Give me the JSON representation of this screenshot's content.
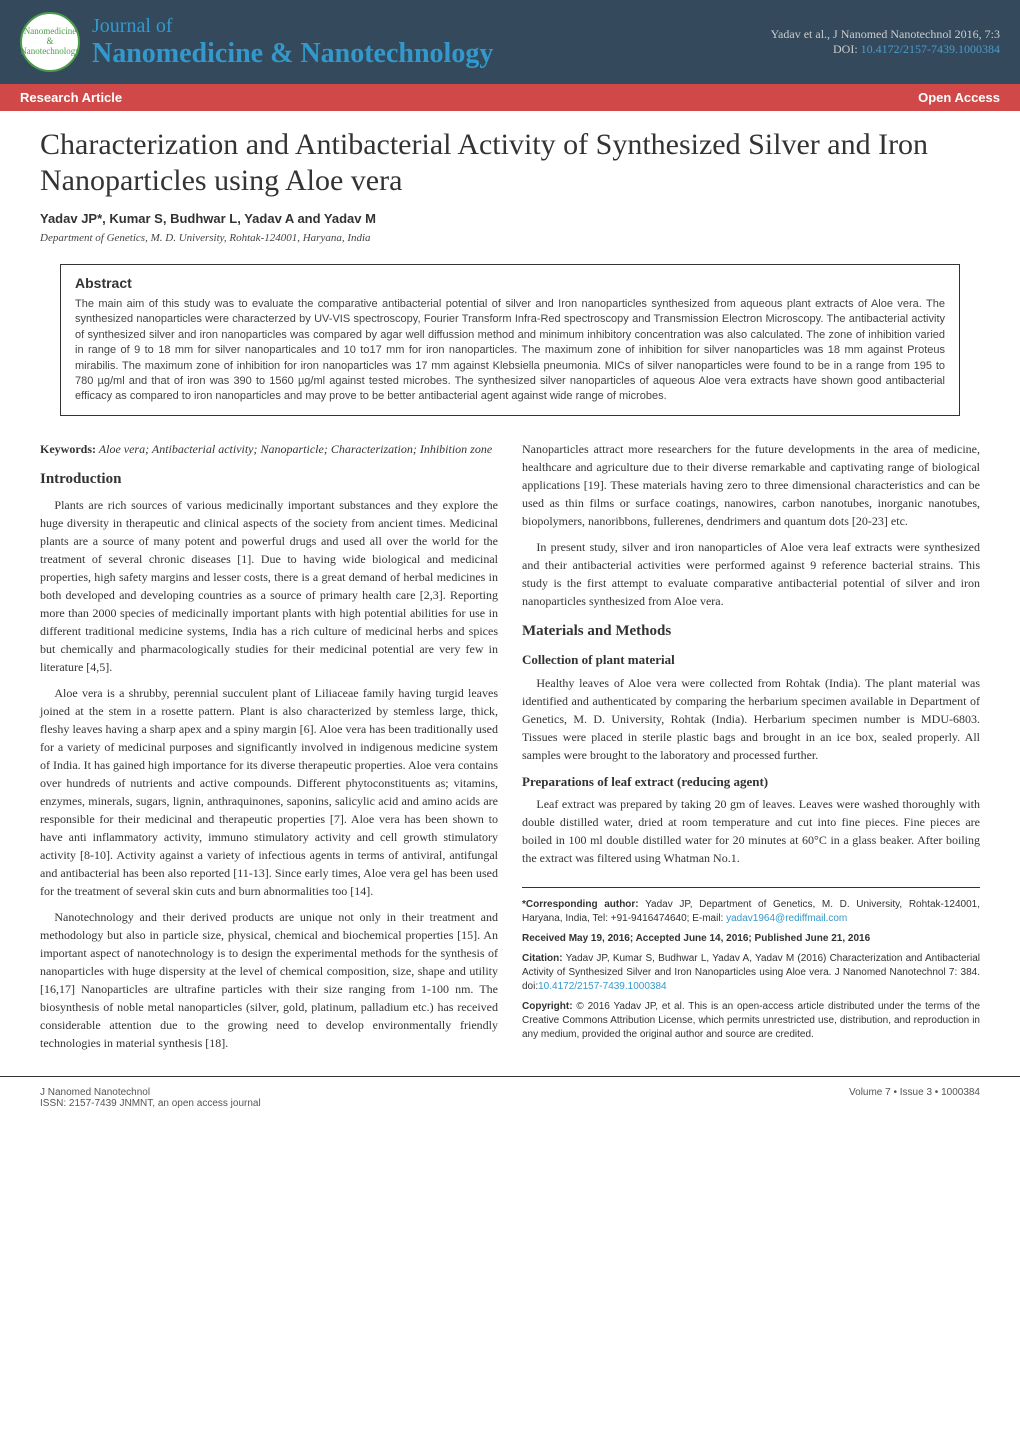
{
  "header": {
    "journal_of": "Journal of",
    "journal_title": "Nanomedicine & Nanotechnology",
    "logo_text": "Nanomedicine & Nanotechnology",
    "citation": "Yadav et al., J Nanomed Nanotechnol 2016, 7:3",
    "doi_label": "DOI: ",
    "doi": "10.4172/2157-7439.1000384",
    "research_article": "Research Article",
    "open_access": "Open Access"
  },
  "article": {
    "title": "Characterization and Antibacterial Activity of Synthesized Silver and Iron Nanoparticles using Aloe vera",
    "authors": "Yadav JP*, Kumar S, Budhwar L, Yadav A and Yadav M",
    "affiliation": "Department of Genetics, M. D. University, Rohtak-124001, Haryana, India"
  },
  "abstract": {
    "heading": "Abstract",
    "text": "The main aim of this study was to evaluate the comparative antibacterial potential of silver and Iron nanoparticles synthesized from aqueous plant extracts of Aloe vera. The synthesized nanoparticles were characterzed by UV-VIS spectroscopy, Fourier Transform Infra-Red spectroscopy and Transmission Electron Microscopy. The antibacterial activity of synthesized silver and iron nanoparticles was compared by agar well diffussion method and minimum inhibitory concentration was also calculated. The zone of inhibition varied in range of 9 to 18 mm for silver nanoparticales and 10 to17 mm for iron nanoparticles. The maximum zone of inhibition for silver nanoparticles was 18 mm against Proteus mirabilis. The maximum zone of inhibition for iron nanoparticles was 17 mm against Klebsiella pneumonia. MICs of silver nanoparticles were found to be in a range from 195 to 780 µg/ml and that of iron was 390 to 1560 µg/ml against tested microbes. The synthesized silver nanoparticles of aqueous Aloe vera extracts have shown good antibacterial efficacy as compared to iron nanoparticles and may prove to be better antibacterial agent against wide range of microbes."
  },
  "keywords": {
    "label": "Keywords:",
    "text": " Aloe vera; Antibacterial activity; Nanoparticle; Characterization; Inhibition zone"
  },
  "sections": {
    "introduction": {
      "heading": "Introduction",
      "p1": "Plants are rich sources of various medicinally important substances and they explore the huge diversity in therapeutic and clinical aspects of the society from ancient times. Medicinal plants are a source of many potent and powerful drugs and used all over the world for the treatment of several chronic diseases [1]. Due to having wide biological and medicinal properties, high safety margins and lesser costs, there is a great demand of herbal medicines in both developed and developing countries as a source of primary health care [2,3]. Reporting more than 2000 species of medicinally important plants with high potential abilities for use in different traditional medicine systems, India has a rich culture of medicinal herbs and spices but chemically and pharmacologically studies for their medicinal potential are very few in literature [4,5].",
      "p2": "Aloe vera is a shrubby, perennial succulent plant of Liliaceae family having turgid leaves joined at the stem in a rosette pattern. Plant is also characterized by stemless large, thick, fleshy leaves having a sharp apex and a spiny margin [6]. Aloe vera has been traditionally used for a variety of medicinal purposes and significantly involved in indigenous medicine system of India. It has gained high importance for its diverse therapeutic properties. Aloe vera contains over hundreds of nutrients and active compounds. Different phytoconstituents as; vitamins, enzymes, minerals, sugars, lignin, anthraquinones, saponins, salicylic acid and amino acids are responsible for their medicinal and therapeutic properties [7]. Aloe vera has been shown to have anti inflammatory activity, immuno stimulatory activity and cell growth stimulatory activity [8-10]. Activity against a variety of infectious agents in terms of antiviral, antifungal and antibacterial has been also reported [11-13]. Since early times, Aloe vera gel has been used for the treatment of several skin cuts and burn abnormalities too [14].",
      "p3": "Nanotechnology and their derived products are unique not only in their treatment and methodology but also in particle size, physical, chemical and biochemical properties [15]. An important aspect of nanotechnology is to design the experimental methods for the synthesis of nanoparticles with huge dispersity at the level of chemical composition, size, shape and utility [16,17] Nanoparticles are ultrafine particles with their size ranging from 1-100 nm. The biosynthesis of noble metal nanoparticles (silver, gold, platinum, palladium etc.) has received considerable attention due to the growing need to develop environmentally friendly technologies in material synthesis [18].",
      "p4": "Nanoparticles attract more researchers for the future developments in the area of medicine, healthcare and agriculture due to their diverse remarkable and captivating range of biological applications [19]. These materials having zero to three dimensional characteristics and can be used as thin films or surface coatings, nanowires, carbon nanotubes, inorganic nanotubes, biopolymers, nanoribbons, fullerenes, dendrimers and quantum dots [20-23] etc.",
      "p5": "In present study, silver and iron nanoparticles of Aloe vera leaf extracts were synthesized and their antibacterial activities were performed against 9 reference bacterial strains. This study is the first attempt to evaluate comparative antibacterial potential of silver and iron nanoparticles synthesized from Aloe vera."
    },
    "materials": {
      "heading": "Materials and Methods",
      "sub1_heading": "Collection of plant material",
      "sub1_text": "Healthy leaves of Aloe vera were collected from Rohtak (India). The plant material was identified and authenticated by comparing the herbarium specimen available in Department of Genetics, M. D. University, Rohtak (India). Herbarium specimen number is MDU-6803. Tissues were placed in sterile plastic bags and brought in an ice box, sealed properly. All samples were brought to the laboratory and processed further.",
      "sub2_heading": "Preparations of leaf extract (reducing agent)",
      "sub2_text": "Leaf extract was prepared by taking 20 gm of leaves. Leaves were washed thoroughly with double distilled water, dried at room temperature and cut into fine pieces. Fine pieces are boiled in 100 ml double distilled water for 20 minutes at 60°C in a glass beaker. After boiling the extract was filtered using Whatman No.1."
    }
  },
  "corresponding": {
    "author_label": "*Corresponding author:",
    "author_text": " Yadav JP, Department of Genetics, M. D. University, Rohtak-124001, Haryana, India, Tel: +91-9416474640; E-mail: ",
    "email": "yadav1964@rediffmail.com",
    "received": "Received May 19, 2016; Accepted June 14, 2016; Published June 21, 2016",
    "citation_label": "Citation:",
    "citation_text": " Yadav JP, Kumar S, Budhwar L, Yadav A, Yadav M (2016) Characterization and Antibacterial Activity of Synthesized Silver and Iron Nanoparticles using Aloe vera. J Nanomed Nanotechnol 7: 384. doi:",
    "citation_doi": "10.4172/2157-7439.1000384",
    "copyright_label": "Copyright:",
    "copyright_text": " © 2016 Yadav JP, et al. This is an open-access article distributed under the terms of the Creative Commons Attribution License, which permits unrestricted use, distribution, and reproduction in any medium, provided the original author and source are credited."
  },
  "footer": {
    "left1": "J Nanomed Nanotechnol",
    "left2": "ISSN: 2157-7439 JNMNT, an open access journal",
    "right": "Volume 7 • Issue 3 • 1000384"
  },
  "colors": {
    "header_bg": "#344a5c",
    "journal_title_color": "#3399cc",
    "research_bar_bg": "#d04848",
    "link_color": "#3399cc",
    "text_color": "#333333"
  }
}
